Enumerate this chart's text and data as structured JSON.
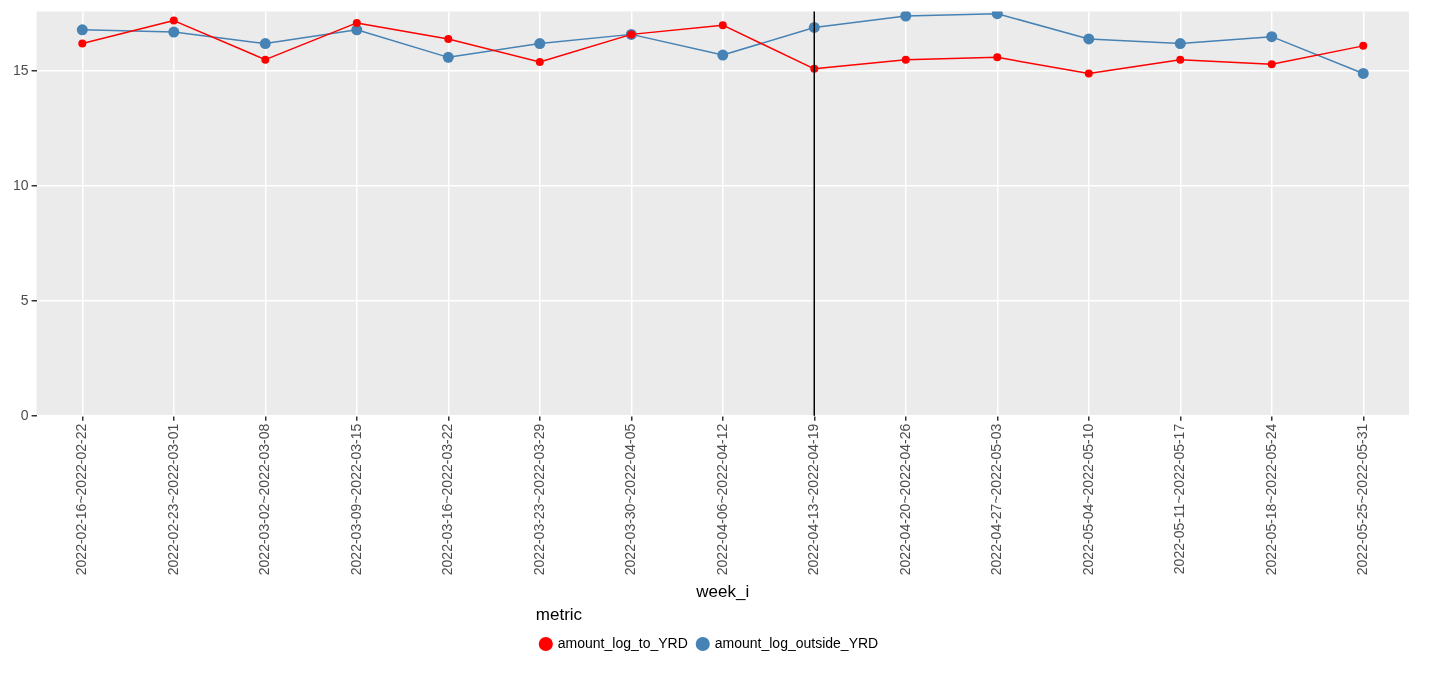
{
  "chart_data": {
    "type": "line",
    "xlabel": "week_i",
    "legend_title": "metric",
    "legend": "bottom",
    "grid": true,
    "marker": "circle",
    "line_style": "solid",
    "categories": [
      "2022-02-16~2022-02-22",
      "2022-02-23~2022-03-01",
      "2022-03-02~2022-03-08",
      "2022-03-09~2022-03-15",
      "2022-03-16~2022-03-22",
      "2022-03-23~2022-03-29",
      "2022-03-30~2022-04-05",
      "2022-04-06~2022-04-12",
      "2022-04-13~2022-04-19",
      "2022-04-20~2022-04-26",
      "2022-04-27~2022-05-03",
      "2022-05-04~2022-05-10",
      "2022-05-11~2022-05-17",
      "2022-05-18~2022-05-24",
      "2022-05-25~2022-05-31"
    ],
    "ylim": [
      0,
      17.6
    ],
    "yticks": [
      0,
      5,
      10,
      15
    ],
    "series": [
      {
        "name": "amount_log_to_YRD",
        "color": "#ff0000",
        "values": [
          16.2,
          17.2,
          15.5,
          17.1,
          16.4,
          15.4,
          16.6,
          17.0,
          15.1,
          15.5,
          15.6,
          14.9,
          15.5,
          15.3,
          16.1
        ]
      },
      {
        "name": "amount_log_outside_YRD",
        "color": "#4682b4",
        "values": [
          16.8,
          16.7,
          16.2,
          16.8,
          15.6,
          16.2,
          16.6,
          15.7,
          16.9,
          17.4,
          17.5,
          16.4,
          16.2,
          16.5,
          14.9
        ]
      }
    ],
    "ref_lines": [
      {
        "axis": "x",
        "value": "2022-04-13~2022-04-19",
        "color": "#000000"
      }
    ]
  }
}
